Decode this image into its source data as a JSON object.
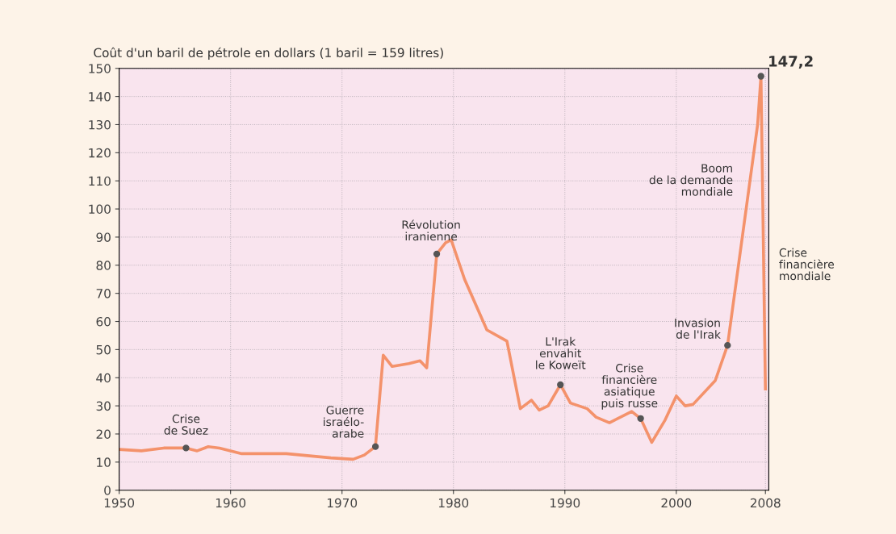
{
  "chart_data": {
    "type": "line",
    "title": "Coût d'un baril de pétrole en dollars (1 baril = 159 litres)",
    "series": [
      {
        "color": "#f4926b",
        "x": [
          1950,
          1952,
          1954,
          1956,
          1957,
          1958,
          1959,
          1961,
          1965,
          1969,
          1971,
          1972,
          1973,
          1973.7,
          1974.5,
          1976,
          1977,
          1977.6,
          1978.5,
          1979.3,
          1979.8,
          1981,
          1983,
          1984.8,
          1986,
          1987,
          1987.7,
          1988.5,
          1989.6,
          1990.5,
          1992,
          1992.8,
          1994,
          1996,
          1996.8,
          1997.8,
          1999,
          2000,
          2000.8,
          2001.5,
          2003.5,
          2004.6,
          2007.3,
          2007.6,
          2008
        ],
        "values": [
          14.5,
          14,
          15,
          15,
          14,
          15.5,
          15,
          13,
          13,
          11.5,
          11,
          12.5,
          15.5,
          48,
          44,
          45,
          46,
          43.5,
          84,
          88,
          89,
          75,
          57,
          53,
          29,
          32,
          28.5,
          30,
          37.5,
          31,
          29,
          26,
          24,
          28,
          25.5,
          17,
          25,
          33.5,
          30,
          30.5,
          39,
          51.5,
          130,
          147.2,
          36
        ]
      }
    ],
    "xlim": [
      1950,
      2008.3
    ],
    "xticks": [
      1950,
      1960,
      1970,
      1980,
      1990,
      2000,
      2008
    ],
    "ylim": [
      0,
      150
    ],
    "yticks": [
      0,
      10,
      20,
      30,
      40,
      50,
      60,
      70,
      80,
      90,
      100,
      110,
      120,
      130,
      140,
      150
    ],
    "grid": true,
    "marker": "none",
    "line_style": "solid",
    "annotations": [
      {
        "text": "Crise\nde Suez",
        "x": 1956,
        "y": 15
      },
      {
        "text": "Guerre\nisraélo-\narabe",
        "x": 1973,
        "y": 15.5
      },
      {
        "text": "Révolution\niranienne",
        "x": 1978.5,
        "y": 84
      },
      {
        "text": "L'Irak\nenvahit\nle Koweït",
        "x": 1989.6,
        "y": 37.5
      },
      {
        "text": "Crise\nfinancière\nasiatique\npuis russe",
        "x": 1996.8,
        "y": 25.5
      },
      {
        "text": "Invasion\nde l'Irak",
        "x": 2004.6,
        "y": 51.5
      },
      {
        "text": "147,2",
        "x": 2007.6,
        "y": 147.2
      },
      {
        "text": "Boom\nde la demande\nmondiale",
        "x": 2006.5,
        "y": 110
      },
      {
        "text": "Crise\nfinancière\nmondiale",
        "x": 2008,
        "y": 80
      }
    ]
  }
}
